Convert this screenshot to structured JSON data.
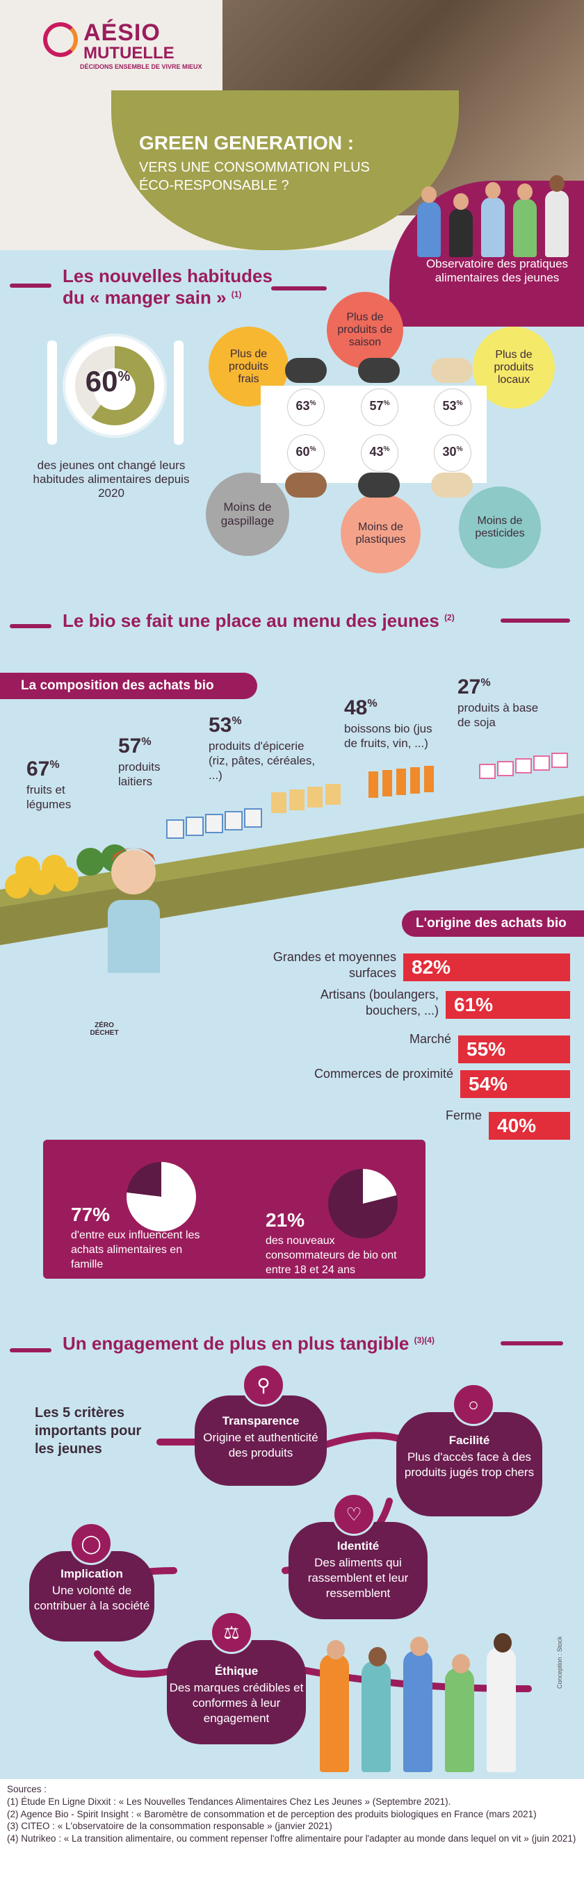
{
  "brand": {
    "line1": "AÉSIO",
    "line2": "MUTUELLE",
    "tagline": "DÉCIDONS ENSEMBLE DE VIVRE MIEUX"
  },
  "header": {
    "title": "GREEN GENERATION :",
    "subtitle": "VERS UNE CONSOMMATION PLUS ÉCO-RESPONSABLE ?",
    "observatory": "Observatoire des pratiques alimentaires des jeunes"
  },
  "section1": {
    "title": "Les nouvelles habitudes du « manger sain »",
    "ref": "(1)",
    "pie_value": "60",
    "pie_fraction": 0.6,
    "pie_caption": "des jeunes ont changé leurs habitudes alimentaires depuis 2020",
    "habits": [
      {
        "label": "Plus de produits frais",
        "value": "63",
        "color": "#f7b731"
      },
      {
        "label": "Plus de produits de saison",
        "value": "57",
        "color": "#ee6a5a"
      },
      {
        "label": "Plus de produits locaux",
        "value": "53",
        "color": "#f5e96a"
      },
      {
        "label": "Moins de gaspillage",
        "value": "60",
        "color": "#a7a7a7"
      },
      {
        "label": "Moins de plastiques",
        "value": "43",
        "color": "#f4a38a"
      },
      {
        "label": "Moins de pesticides",
        "value": "30",
        "color": "#8dc9c6"
      }
    ]
  },
  "section2": {
    "title": "Le bio se fait une place au menu des jeunes",
    "ref": "(2)",
    "composition_title": "La composition des achats bio",
    "composition": [
      {
        "value": "67",
        "label": "fruits et légumes"
      },
      {
        "value": "57",
        "label": "produits laitiers"
      },
      {
        "value": "53",
        "label": "produits d'épicerie (riz, pâtes, céréales, ...)"
      },
      {
        "value": "48",
        "label": "boissons bio (jus de fruits, vin, ...)"
      },
      {
        "value": "27",
        "label": "produits à base de soja"
      }
    ],
    "origin_title": "L'origine des achats bio",
    "origin": [
      {
        "label": "Grandes et moyennes surfaces",
        "value": 82
      },
      {
        "label": "Artisans (boulangers, bouchers, ...)",
        "value": 61
      },
      {
        "label": "Marché",
        "value": 55
      },
      {
        "label": "Commerces de proximité",
        "value": 54
      },
      {
        "label": "Ferme",
        "value": 40
      }
    ],
    "bag_text": "ZÉRO DÉCHET",
    "influence": [
      {
        "value": "77%",
        "fraction": 0.77,
        "text": "d'entre eux influencent les achats alimentaires en famille"
      },
      {
        "value": "21%",
        "fraction": 0.21,
        "text": "des nouveaux consommateurs de bio ont entre 18 et 24 ans"
      }
    ]
  },
  "section3": {
    "title": "Un engagement de plus en plus tangible",
    "ref": "(3)(4)",
    "intro": "Les 5 critères importants pour les jeunes",
    "criteria": [
      {
        "name": "Transparence",
        "text": "Origine et authenticité des produits",
        "icon": "magnifier-icon"
      },
      {
        "name": "Facilité",
        "text": "Plus d'accès face à des produits jugés trop chers",
        "icon": "piggy-bank-icon"
      },
      {
        "name": "Identité",
        "text": "Des aliments qui rassemblent et leur ressemblent",
        "icon": "heart-icon"
      },
      {
        "name": "Implication",
        "text": "Une volonté de contribuer à la société",
        "icon": "lightbulb-icon"
      },
      {
        "name": "Éthique",
        "text": "Des marques crédibles et conformes à leur engagement",
        "icon": "scales-icon"
      }
    ]
  },
  "credit": "Conception : Stock",
  "sources": {
    "title": "Sources :",
    "lines": [
      "(1) Étude En Ligne Dixxit : « Les Nouvelles Tendances Alimentaires Chez Les Jeunes » (Septembre 2021).",
      "(2) Agence Bio - Spirit Insight : « Baromètre de consommation et de perception des produits biologiques en France (mars 2021)",
      "(3) CITEO : « L'observatoire de la consommation responsable » (janvier 2021)",
      "(4) Nutrikeo : « La transition alimentaire, ou comment repenser l'offre alimentaire pour l'adapter au monde dans lequel on vit » (juin 2021)"
    ]
  }
}
